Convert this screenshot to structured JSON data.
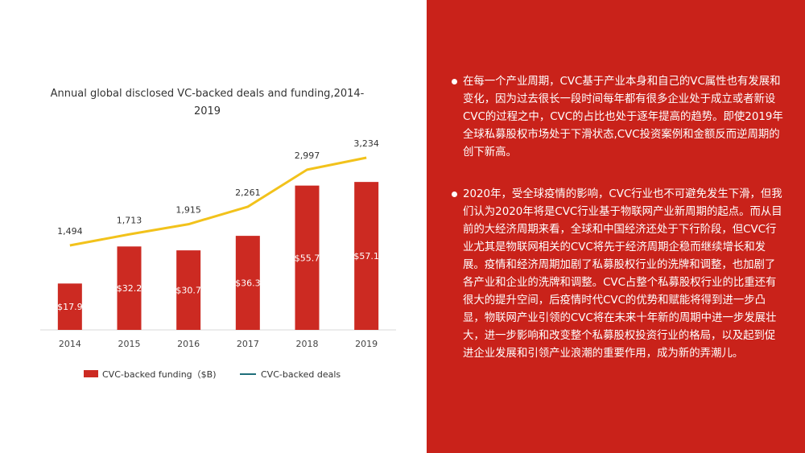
{
  "chart_data": {
    "type": "bar+line",
    "title": "Annual global disclosed VC-backed  deals and funding,2014-2019",
    "categories": [
      "2014",
      "2015",
      "2016",
      "2017",
      "2018",
      "2019"
    ],
    "series": [
      {
        "name": "CVC-backed funding（$B)",
        "type": "bar",
        "color": "#cc2a22",
        "values": [
          17.9,
          32.2,
          30.7,
          36.3,
          55.7,
          57.1
        ],
        "labels": [
          "$17.9",
          "$32.2",
          "$30.7",
          "$36.3",
          "$55.7",
          "$57.1"
        ]
      },
      {
        "name": "CVC-backed deals",
        "type": "line",
        "color": "#f2c21b",
        "values": [
          1494,
          1713,
          1915,
          2261,
          2997,
          3234
        ],
        "labels": [
          "1,494",
          "1,713",
          "1,915",
          "2,261",
          "2,997",
          "3,234"
        ]
      }
    ],
    "legend_position": "bottom",
    "legend_line_color": "#1f6e7a",
    "grid": false
  },
  "panel": {
    "background": "#c9221a",
    "bullets": [
      "在每一个产业周期，CVC基于产业本身和自己的VC属性也有发展和变化，因为过去很长一段时间每年都有很多企业处于成立或者新设CVC的过程之中，CVC的占比也处于逐年提高的趋势。即使2019年全球私募股权市场处于下滑状态,CVC投资案例和金额反而逆周期的创下新高。",
      "2020年，受全球疫情的影响，CVC行业也不可避免发生下滑，但我们认为2020年将是CVC行业基于物联网产业新周期的起点。而从目前的大经济周期来看，全球和中国经济还处于下行阶段，但CVC行业尤其是物联网相关的CVC将先于经济周期企稳而继续增长和发展。疫情和经济周期加剧了私募股权行业的洗牌和调整，也加剧了各产业和企业的洗牌和调整。CVC占整个私募股权行业的比重还有很大的提升空间，后疫情时代CVC的优势和赋能将得到进一步凸显，物联网产业引领的CVC将在未来十年新的周期中进一步发展壮大，进一步影响和改变整个私募股权投资行业的格局，以及起到促进企业发展和引领产业浪潮的重要作用，成为新的弄潮儿。"
    ]
  }
}
